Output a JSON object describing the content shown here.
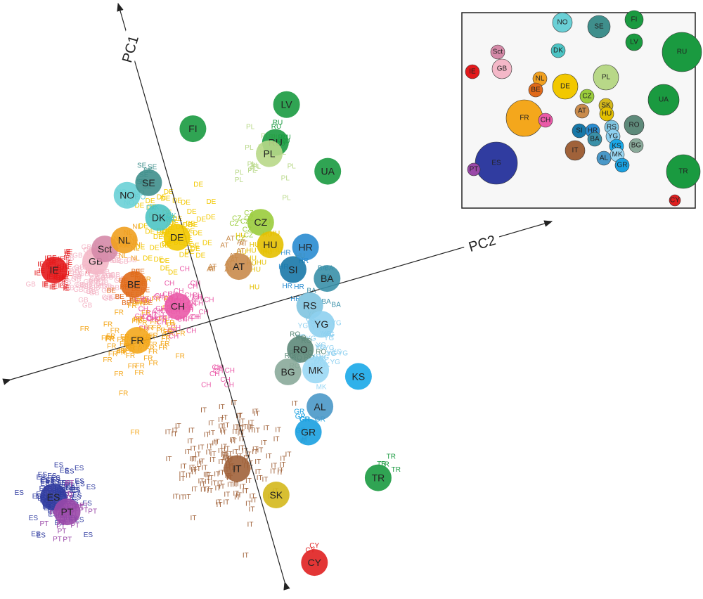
{
  "chart_data": {
    "type": "scatter",
    "title": "",
    "axes": [
      {
        "name": "PC1",
        "label": "PC1"
      },
      {
        "name": "PC2",
        "label": "PC2"
      }
    ],
    "legend": "inset-map-top-right",
    "colors": {
      "IE": "#e31a1c",
      "GB": "#f4b8c8",
      "Sct": "#d58aa8",
      "NL": "#f0a020",
      "BE": "#e06a1a",
      "FR": "#f4a71c",
      "CH": "#ea5aa8",
      "DE": "#f2c800",
      "DK": "#4cc4c4",
      "NO": "#6ad0d6",
      "SE": "#3f8f8c",
      "FI": "#1a9a40",
      "LV": "#1a9a40",
      "RU": "#1a9a40",
      "UA": "#1a9a40",
      "PL": "#b8d888",
      "CZ": "#9acc3c",
      "HU": "#e4c000",
      "AT": "#c98b4c",
      "SI": "#1878a8",
      "HR": "#2a8cd0",
      "BA": "#3a90a8",
      "RS": "#80c4e0",
      "YG": "#8ed0f0",
      "RO": "#5e8a7a",
      "BG": "#8aaa9a",
      "MK": "#9ad8f4",
      "KS": "#1aa8e8",
      "AL": "#4a98c8",
      "GR": "#1aa0e0",
      "TR": "#1a9a40",
      "IT": "#a0623a",
      "SK": "#d4b81c",
      "CY": "#e02020",
      "ES": "#303ca0",
      "PT": "#9a48a8"
    },
    "centroids": [
      {
        "label": "IE",
        "pc2": -5.0,
        "pc1": 2.4
      },
      {
        "label": "GB",
        "pc2": -3.6,
        "pc1": 2.3
      },
      {
        "label": "Sct",
        "pc2": -3.2,
        "pc1": 2.6
      },
      {
        "label": "NL",
        "pc2": -2.5,
        "pc1": 2.7
      },
      {
        "label": "BE",
        "pc2": -2.6,
        "pc1": 1.2
      },
      {
        "label": "FR",
        "pc2": -3.0,
        "pc1": -0.6
      },
      {
        "label": "CH",
        "pc2": -1.4,
        "pc1": 0.1
      },
      {
        "label": "DE",
        "pc2": -0.8,
        "pc1": 2.3
      },
      {
        "label": "DK",
        "pc2": -1.2,
        "pc1": 3.1
      },
      {
        "label": "NO",
        "pc2": -2.0,
        "pc1": 4.1
      },
      {
        "label": "SE",
        "pc2": -1.2,
        "pc1": 4.3
      },
      {
        "label": "FI",
        "pc2": 0.7,
        "pc1": 5.6
      },
      {
        "label": "LV",
        "pc2": 3.9,
        "pc1": 5.5
      },
      {
        "label": "RU",
        "pc2": 3.2,
        "pc1": 4.4
      },
      {
        "label": "PL",
        "pc2": 2.9,
        "pc1": 4.1
      },
      {
        "label": "UA",
        "pc2": 4.6,
        "pc1": 3.0
      },
      {
        "label": "CZ",
        "pc2": 2.0,
        "pc1": 2.0
      },
      {
        "label": "HU",
        "pc2": 2.1,
        "pc1": 1.2
      },
      {
        "label": "AT",
        "pc2": 0.9,
        "pc1": 0.8
      },
      {
        "label": "SI",
        "pc2": 2.6,
        "pc1": 0.2
      },
      {
        "label": "HR",
        "pc2": 3.2,
        "pc1": 0.8
      },
      {
        "label": "BA",
        "pc2": 3.6,
        "pc1": -0.4
      },
      {
        "label": "RS",
        "pc2": 2.8,
        "pc1": -1.1
      },
      {
        "label": "YG",
        "pc2": 3.0,
        "pc1": -1.8
      },
      {
        "label": "RO",
        "pc2": 2.1,
        "pc1": -2.4
      },
      {
        "label": "BG",
        "pc2": 1.5,
        "pc1": -3.0
      },
      {
        "label": "MK",
        "pc2": 2.4,
        "pc1": -3.2
      },
      {
        "label": "KS",
        "pc2": 3.7,
        "pc1": -3.8
      },
      {
        "label": "AL",
        "pc2": 2.2,
        "pc1": -4.4
      },
      {
        "label": "GR",
        "pc2": 1.6,
        "pc1": -5.1
      },
      {
        "label": "TR",
        "pc2": 3.4,
        "pc1": -7.2
      },
      {
        "label": "IT",
        "pc2": -1.0,
        "pc1": -5.6
      },
      {
        "label": "SK",
        "pc2": 0.0,
        "pc1": -6.8
      },
      {
        "label": "CY",
        "pc2": 0.6,
        "pc1": -9.3
      },
      {
        "label": "ES",
        "pc2": -7.1,
        "pc1": -4.8
      },
      {
        "label": "PT",
        "pc2": -6.8,
        "pc1": -5.4
      }
    ],
    "individual_clusters": [
      {
        "label": "IE",
        "n": 45,
        "pc2": -4.9,
        "pc1": 2.3,
        "spread": 0.6
      },
      {
        "label": "GB",
        "n": 75,
        "pc2": -3.7,
        "pc1": 1.9,
        "spread": 0.9
      },
      {
        "label": "NL",
        "n": 18,
        "pc2": -2.5,
        "pc1": 2.5,
        "spread": 0.6
      },
      {
        "label": "BE",
        "n": 18,
        "pc2": -2.6,
        "pc1": 1.1,
        "spread": 0.6
      },
      {
        "label": "FR",
        "n": 80,
        "pc2": -2.8,
        "pc1": -0.5,
        "spread": 1.2
      },
      {
        "label": "CH",
        "n": 60,
        "pc2": -1.5,
        "pc1": 0.1,
        "spread": 0.8
      },
      {
        "label": "DE",
        "n": 55,
        "pc2": -0.8,
        "pc1": 2.6,
        "spread": 1.0
      },
      {
        "label": "DK",
        "n": 6,
        "pc2": -1.2,
        "pc1": 3.2,
        "spread": 0.4
      },
      {
        "label": "NO",
        "n": 5,
        "pc2": -1.8,
        "pc1": 3.9,
        "spread": 0.4
      },
      {
        "label": "SE",
        "n": 8,
        "pc2": -1.3,
        "pc1": 4.5,
        "spread": 0.5
      },
      {
        "label": "PL",
        "n": 20,
        "pc2": 2.6,
        "pc1": 3.9,
        "spread": 0.8
      },
      {
        "label": "RU",
        "n": 7,
        "pc2": 3.3,
        "pc1": 4.6,
        "spread": 0.5
      },
      {
        "label": "CZ",
        "n": 8,
        "pc2": 1.5,
        "pc1": 2.0,
        "spread": 0.5
      },
      {
        "label": "HU",
        "n": 16,
        "pc2": 1.6,
        "pc1": 1.1,
        "spread": 0.8
      },
      {
        "label": "AT",
        "n": 12,
        "pc2": 0.8,
        "pc1": 1.1,
        "spread": 0.6
      },
      {
        "label": "HR",
        "n": 6,
        "pc2": 2.8,
        "pc1": 0.3,
        "spread": 0.7
      },
      {
        "label": "BA",
        "n": 8,
        "pc2": 3.1,
        "pc1": -0.7,
        "spread": 0.5
      },
      {
        "label": "YG",
        "n": 30,
        "pc2": 3.0,
        "pc1": -2.4,
        "spread": 0.8
      },
      {
        "label": "RO",
        "n": 12,
        "pc2": 2.1,
        "pc1": -2.6,
        "spread": 0.6
      },
      {
        "label": "MK",
        "n": 6,
        "pc2": 2.5,
        "pc1": -3.3,
        "spread": 0.5
      },
      {
        "label": "GR",
        "n": 6,
        "pc2": 1.8,
        "pc1": -4.8,
        "spread": 0.5
      },
      {
        "label": "TR",
        "n": 4,
        "pc2": 3.6,
        "pc1": -6.7,
        "spread": 0.8
      },
      {
        "label": "IT",
        "n": 160,
        "pc2": -1.1,
        "pc1": -5.2,
        "spread": 1.4
      },
      {
        "label": "ES",
        "n": 90,
        "pc2": -7.0,
        "pc1": -4.9,
        "spread": 0.8
      },
      {
        "label": "PT",
        "n": 35,
        "pc2": -6.8,
        "pc1": -5.4,
        "spread": 0.6
      },
      {
        "label": "CY",
        "n": 2,
        "pc2": 0.4,
        "pc1": -8.9,
        "spread": 0.3
      },
      {
        "label": "CH",
        "n": 8,
        "pc2": -0.7,
        "pc1": -2.7,
        "spread": 0.6
      }
    ],
    "inset_map": {
      "labels": [
        "NO",
        "SE",
        "FI",
        "DK",
        "LV",
        "RU",
        "Sct",
        "GB",
        "IE",
        "NL",
        "BE",
        "DE",
        "PL",
        "CZ",
        "SK",
        "UA",
        "FR",
        "CH",
        "AT",
        "HU",
        "SI",
        "HR",
        "BA",
        "RS",
        "RO",
        "IT",
        "ES",
        "PT",
        "YG",
        "KS",
        "MK",
        "AL",
        "BG",
        "GR",
        "TR",
        "CY"
      ]
    }
  }
}
